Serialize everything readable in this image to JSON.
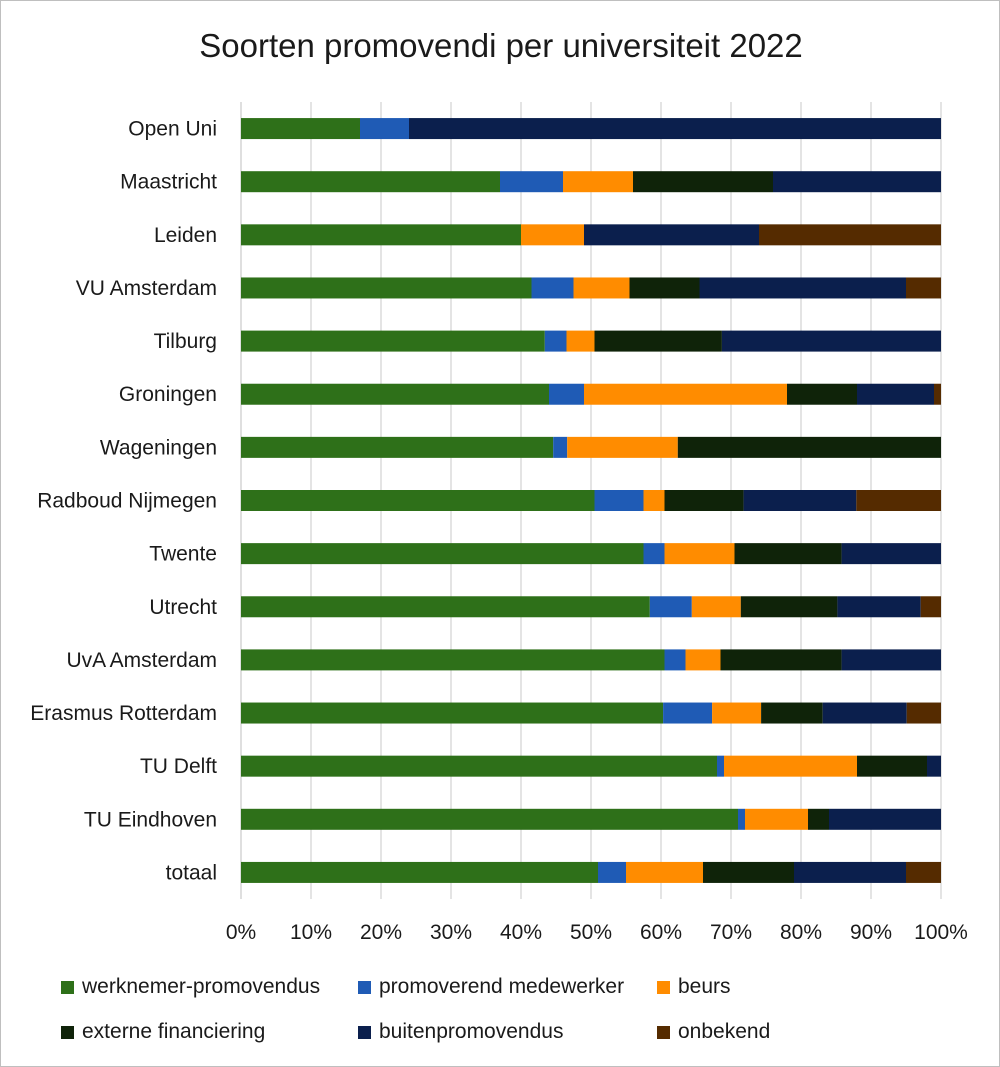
{
  "chart_data": {
    "type": "bar",
    "orientation": "horizontal",
    "stacked": "percent",
    "title": "Soorten promovendi per universiteit 2022",
    "categories": [
      "Open Uni",
      "Maastricht",
      "Leiden",
      "VU Amsterdam",
      "Tilburg",
      "Groningen",
      "Wageningen",
      "Radboud Nijmegen",
      "Twente",
      "Utrecht",
      "UvA Amsterdam",
      "Erasmus Rotterdam",
      "TU Delft",
      "TU Eindhoven",
      "totaal"
    ],
    "xlim": [
      0,
      100
    ],
    "xticks": [
      "0%",
      "10%",
      "20%",
      "30%",
      "40%",
      "50%",
      "60%",
      "70%",
      "80%",
      "90%",
      "100%"
    ],
    "grid": "vertical",
    "legend": "bottom",
    "series": [
      {
        "name": "werknemer-promovendus",
        "color": "#2e7019",
        "values": [
          17,
          37,
          40,
          41.5,
          43.4,
          44,
          44.6,
          50.5,
          57.5,
          58.4,
          60.5,
          60.3,
          68,
          71,
          51
        ]
      },
      {
        "name": "promoverend medewerker",
        "color": "#1f5bb5",
        "values": [
          7,
          9,
          0,
          6,
          3.1,
          5,
          2,
          7,
          3,
          6,
          3,
          7,
          1,
          1,
          4
        ]
      },
      {
        "name": "beurs",
        "color": "#ff8c00",
        "values": [
          0,
          10,
          9,
          8,
          4,
          29,
          15.8,
          3,
          10,
          7,
          5,
          7,
          19,
          9,
          11
        ]
      },
      {
        "name": "externe financiering",
        "color": "#0f2309",
        "values": [
          0,
          20,
          0,
          10,
          18.2,
          10,
          37.6,
          11.3,
          15.3,
          13.8,
          17.3,
          8.8,
          10,
          3,
          13
        ]
      },
      {
        "name": "buitenpromovendus",
        "color": "#0b1f4d",
        "values": [
          76,
          24,
          25,
          29.5,
          31.3,
          11,
          0,
          16.1,
          14.2,
          11.9,
          14.2,
          12,
          2,
          16,
          16
        ]
      },
      {
        "name": "onbekend",
        "color": "#552b00",
        "values": [
          0,
          0,
          26,
          5,
          0,
          1,
          0,
          12.1,
          0,
          2.9,
          0,
          4.9,
          0,
          0,
          5
        ]
      }
    ]
  }
}
